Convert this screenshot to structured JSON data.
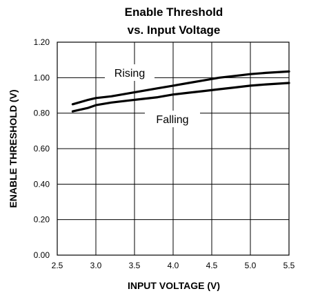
{
  "chart_data": {
    "type": "line",
    "title_lines": [
      "Enable Threshold",
      "vs. Input Voltage"
    ],
    "xlabel": "INPUT VOLTAGE (V)",
    "ylabel": "ENABLE THRESHOLD (V)",
    "xlim": [
      2.5,
      5.5
    ],
    "ylim": [
      0.0,
      1.2
    ],
    "xticks": [
      2.5,
      3.0,
      3.5,
      4.0,
      4.5,
      5.0,
      5.5
    ],
    "xtick_labels": [
      "2.5",
      "3.0",
      "3.5",
      "4.0",
      "4.5",
      "5.0",
      "5.5"
    ],
    "yticks": [
      0.0,
      0.2,
      0.4,
      0.6,
      0.8,
      1.0,
      1.2
    ],
    "ytick_labels": [
      "0.00",
      "0.20",
      "0.40",
      "0.60",
      "0.80",
      "1.00",
      "1.20"
    ],
    "grid": true,
    "series": [
      {
        "name": "Rising",
        "x": [
          2.7,
          2.9,
          3.0,
          3.2,
          3.4,
          3.6,
          3.8,
          4.0,
          4.2,
          4.4,
          4.6,
          4.8,
          5.0,
          5.2,
          5.5
        ],
        "values": [
          0.85,
          0.875,
          0.885,
          0.895,
          0.91,
          0.925,
          0.94,
          0.955,
          0.97,
          0.985,
          1.0,
          1.01,
          1.02,
          1.027,
          1.035
        ]
      },
      {
        "name": "Falling",
        "x": [
          2.7,
          2.9,
          3.0,
          3.2,
          3.4,
          3.6,
          3.8,
          4.0,
          4.2,
          4.4,
          4.6,
          4.8,
          5.0,
          5.2,
          5.5
        ],
        "values": [
          0.81,
          0.83,
          0.845,
          0.86,
          0.87,
          0.88,
          0.89,
          0.905,
          0.915,
          0.925,
          0.935,
          0.945,
          0.955,
          0.962,
          0.97
        ]
      }
    ]
  }
}
